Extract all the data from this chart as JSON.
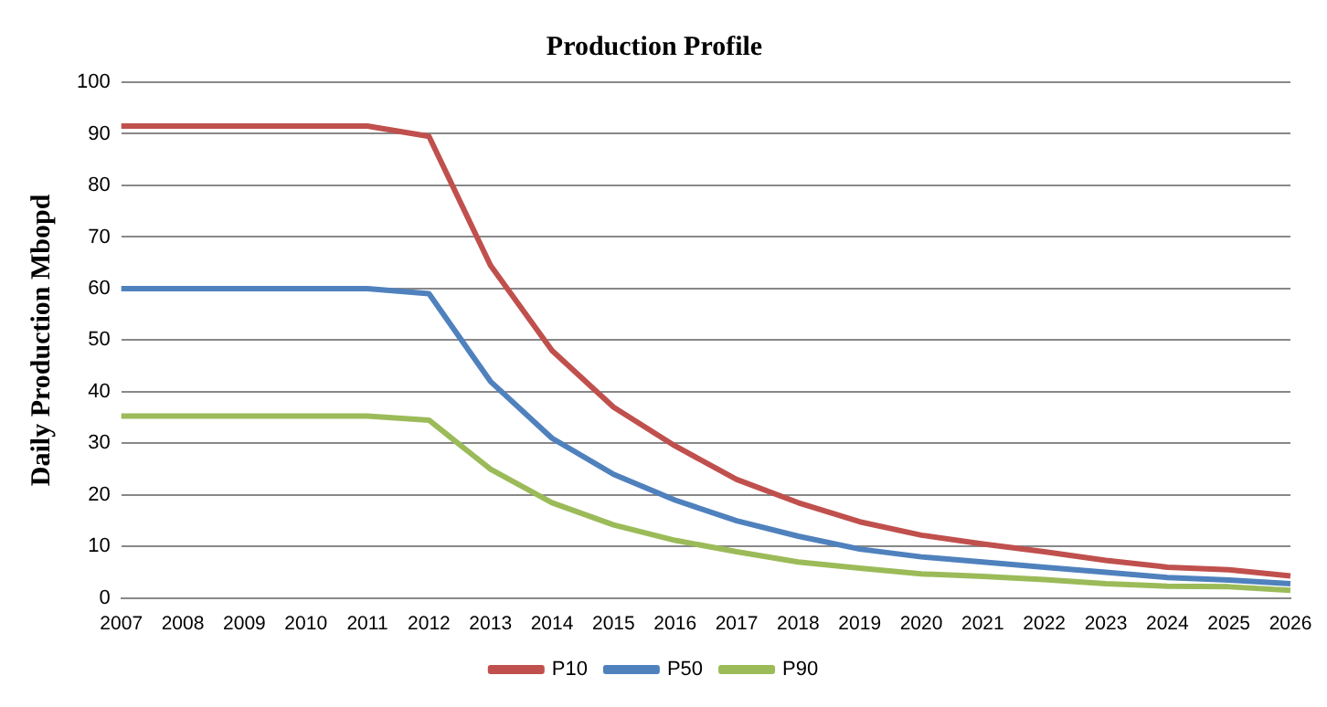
{
  "chart_data": {
    "type": "line",
    "title": "Production Profile",
    "ylabel": "Daily Production Mbopd",
    "categories": [
      "2007",
      "2008",
      "2009",
      "2010",
      "2011",
      "2012",
      "2013",
      "2014",
      "2015",
      "2016",
      "2017",
      "2018",
      "2019",
      "2020",
      "2021",
      "2022",
      "2023",
      "2024",
      "2025",
      "2026"
    ],
    "series": [
      {
        "name": "P10",
        "color": "#c0504d",
        "values": [
          91.5,
          91.5,
          91.5,
          91.5,
          91.5,
          89.5,
          64.5,
          48,
          37,
          29.5,
          23,
          18.5,
          14.8,
          12.2,
          10.5,
          9,
          7.3,
          6,
          5.5,
          4.3
        ]
      },
      {
        "name": "P50",
        "color": "#4f81bd",
        "values": [
          60,
          60,
          60,
          60,
          60,
          59,
          42,
          31,
          24,
          19,
          15,
          12,
          9.5,
          8,
          7,
          6,
          5,
          4,
          3.5,
          2.8
        ]
      },
      {
        "name": "P90",
        "color": "#9bbb59",
        "values": [
          35.3,
          35.3,
          35.3,
          35.3,
          35.3,
          34.5,
          25,
          18.5,
          14.2,
          11.2,
          9,
          7,
          5.8,
          4.7,
          4.2,
          3.6,
          2.8,
          2.3,
          2.2,
          1.5
        ]
      }
    ],
    "ylim": [
      0,
      100
    ],
    "yticks": [
      0,
      10,
      20,
      30,
      40,
      50,
      60,
      70,
      80,
      90,
      100
    ],
    "grid": "y",
    "legend": "bottom",
    "marker": "none",
    "line_style": "solid"
  }
}
